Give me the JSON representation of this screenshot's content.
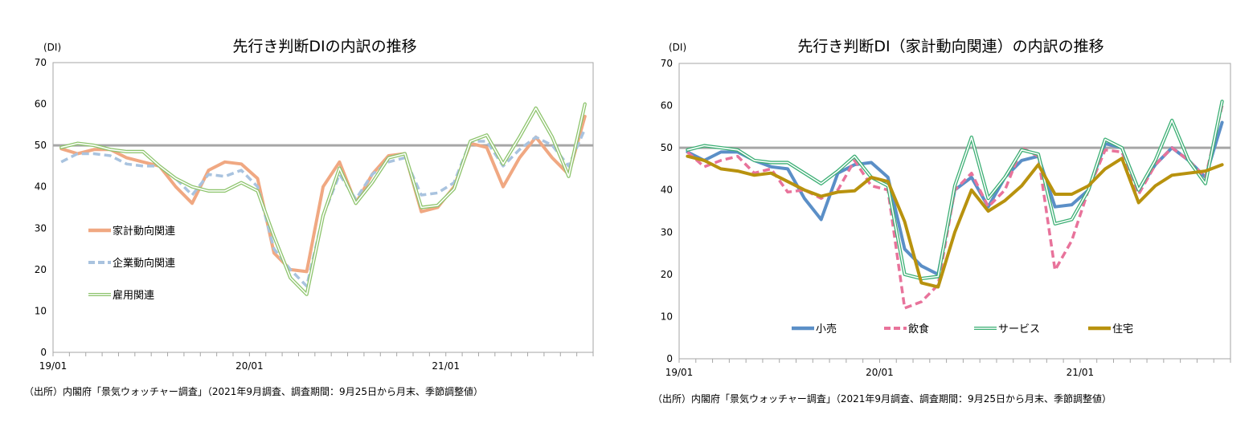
{
  "chart_data": [
    {
      "type": "line",
      "title": "先行き判断DIの内訳の推移",
      "ylabel": "(DI)",
      "ylim": [
        0,
        70
      ],
      "yticks": [
        0,
        10,
        20,
        30,
        40,
        50,
        60,
        70
      ],
      "x_tick_labels": [
        {
          "label": "19/01",
          "index": 0
        },
        {
          "label": "20/01",
          "index": 12
        },
        {
          "label": "21/01",
          "index": 24
        }
      ],
      "reference_line": 50,
      "grid": false,
      "legend_position": "left",
      "source": "（出所）内閣府「景気ウォッチャー調査」（2021年9月調査、調査期間：9月25日から月末、季節調整値）",
      "series": [
        {
          "name": "家計動向関連",
          "color": "#F0A882",
          "style": "solid",
          "values": [
            49.2,
            48.0,
            49.0,
            49.0,
            47.0,
            46.0,
            45.0,
            40.0,
            36.0,
            44.0,
            46.0,
            45.5,
            42.0,
            24.0,
            20.0,
            19.5,
            40.0,
            46.0,
            36.0,
            43.0,
            47.5,
            48.0,
            34.0,
            35.0,
            40.0,
            50.5,
            49.5,
            40.0,
            47.0,
            52.0,
            47.0,
            43.0,
            57.0
          ]
        },
        {
          "name": "企業動向関連",
          "color": "#A9C3DF",
          "style": "dashed",
          "values": [
            46.0,
            48.0,
            48.0,
            47.5,
            45.5,
            45.0,
            45.0,
            42.0,
            38.0,
            43.0,
            42.5,
            44.0,
            40.0,
            25.0,
            20.0,
            16.0,
            33.0,
            43.0,
            37.0,
            43.0,
            46.0,
            47.0,
            38.0,
            38.5,
            41.0,
            51.0,
            51.0,
            45.0,
            49.0,
            52.0,
            50.0,
            45.0,
            54.0
          ]
        },
        {
          "name": "雇用関連",
          "color": "#8DC46C",
          "style": "double",
          "values": [
            49.5,
            50.5,
            50.0,
            49.0,
            48.5,
            48.5,
            45.0,
            42.0,
            40.0,
            39.0,
            39.0,
            41.0,
            39.0,
            28.0,
            18.0,
            14.0,
            33.0,
            44.5,
            36.0,
            41.0,
            47.0,
            48.0,
            35.0,
            35.5,
            39.5,
            51.0,
            52.5,
            45.5,
            52.0,
            59.0,
            52.0,
            42.5,
            60.0
          ]
        }
      ]
    },
    {
      "type": "line",
      "title": "先行き判断DI（家計動向関連）の内訳の推移",
      "ylabel": "(DI)",
      "ylim": [
        0,
        70
      ],
      "yticks": [
        0,
        10,
        20,
        30,
        40,
        50,
        60,
        70
      ],
      "x_tick_labels": [
        {
          "label": "19/01",
          "index": 0
        },
        {
          "label": "20/01",
          "index": 12
        },
        {
          "label": "21/01",
          "index": 24
        }
      ],
      "reference_line": 50,
      "grid": false,
      "legend_position": "bottom",
      "source": "（出所）内閣府「景気ウォッチャー調査」（2021年9月調査、調査期間：9月25日から月末、季節調整値）",
      "series": [
        {
          "name": "小売",
          "color": "#5B8FC7",
          "style": "solid",
          "values": [
            49.0,
            47.0,
            49.0,
            49.0,
            47.0,
            45.5,
            45.0,
            38.0,
            33.0,
            44.0,
            46.0,
            46.5,
            43.0,
            26.0,
            22.0,
            20.0,
            40.0,
            43.0,
            36.0,
            43.0,
            47.0,
            48.0,
            36.0,
            36.5,
            40.0,
            51.0,
            50.0,
            40.0,
            46.0,
            50.0,
            47.0,
            43.0,
            56.0
          ]
        },
        {
          "name": "飲食",
          "color": "#E8739B",
          "style": "dashed",
          "values": [
            49.0,
            45.5,
            47.0,
            48.0,
            44.0,
            45.0,
            39.5,
            40.0,
            38.0,
            40.0,
            47.0,
            41.0,
            40.0,
            12.0,
            13.5,
            17.5,
            40.0,
            44.0,
            36.0,
            40.0,
            50.0,
            48.0,
            21.0,
            28.0,
            40.0,
            49.5,
            49.0,
            39.0,
            46.0,
            50.0,
            47.0,
            43.0,
            60.0
          ]
        },
        {
          "name": "サービス",
          "color": "#3CAF74",
          "style": "double",
          "values": [
            49.5,
            50.5,
            50.0,
            49.5,
            47.0,
            46.5,
            46.5,
            44.0,
            41.5,
            44.5,
            48.0,
            43.0,
            41.0,
            20.0,
            19.0,
            19.5,
            41.0,
            52.5,
            38.0,
            43.0,
            49.5,
            48.5,
            32.0,
            33.0,
            40.0,
            52.0,
            50.0,
            40.0,
            47.0,
            56.5,
            47.0,
            41.5,
            61.0
          ]
        },
        {
          "name": "住宅",
          "color": "#B8920E",
          "style": "solid",
          "values": [
            48.0,
            47.0,
            45.0,
            44.5,
            43.5,
            44.0,
            42.0,
            40.0,
            38.5,
            39.5,
            39.8,
            43.0,
            42.0,
            32.5,
            18.0,
            17.0,
            30.0,
            40.0,
            35.0,
            37.5,
            41.0,
            46.0,
            39.0,
            39.0,
            41.0,
            45.0,
            47.5,
            37.0,
            41.0,
            43.5,
            44.0,
            44.5,
            46.0
          ]
        }
      ]
    }
  ]
}
